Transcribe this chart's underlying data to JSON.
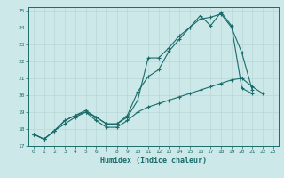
{
  "xlabel": "Humidex (Indice chaleur)",
  "bg_color": "#cce8e8",
  "line_color": "#1a6b6b",
  "grid_color": "#aacccc",
  "xlim": [
    -0.5,
    23.5
  ],
  "ylim": [
    17,
    25.2
  ],
  "yticks": [
    17,
    18,
    19,
    20,
    21,
    22,
    23,
    24,
    25
  ],
  "xticks": [
    0,
    1,
    2,
    3,
    4,
    5,
    6,
    7,
    8,
    9,
    10,
    11,
    12,
    13,
    14,
    15,
    16,
    17,
    18,
    19,
    20,
    21,
    22,
    23
  ],
  "line1_x": [
    0,
    1,
    2,
    3,
    4,
    5,
    6,
    7,
    8,
    9,
    10,
    11,
    12,
    13,
    14,
    15,
    16,
    17,
    18,
    19,
    20,
    21
  ],
  "line1_y": [
    17.7,
    17.4,
    17.9,
    18.5,
    18.8,
    19.0,
    18.7,
    18.3,
    18.3,
    18.8,
    20.2,
    21.1,
    21.5,
    22.6,
    23.3,
    24.0,
    24.5,
    24.6,
    24.8,
    24.0,
    22.5,
    20.3
  ],
  "line2_x": [
    0,
    1,
    2,
    3,
    4,
    5,
    6,
    7,
    8,
    9,
    10,
    11,
    12,
    13,
    14,
    15,
    16,
    17,
    18,
    19,
    20,
    21,
    22,
    23
  ],
  "line2_y": [
    17.7,
    17.4,
    17.9,
    18.5,
    18.8,
    19.1,
    18.7,
    18.3,
    18.3,
    18.7,
    19.7,
    22.2,
    22.2,
    22.8,
    23.5,
    24.0,
    24.7,
    24.1,
    24.9,
    24.1,
    20.4,
    20.1,
    null,
    null
  ],
  "line3_x": [
    0,
    1,
    2,
    3,
    4,
    5,
    6,
    7,
    8,
    9,
    10,
    11,
    12,
    13,
    14,
    15,
    16,
    17,
    18,
    19,
    20,
    21,
    22,
    23
  ],
  "line3_y": [
    17.7,
    17.4,
    17.9,
    18.3,
    18.7,
    19.0,
    18.5,
    18.1,
    18.1,
    18.5,
    19.0,
    19.3,
    19.5,
    19.7,
    19.9,
    20.1,
    20.3,
    20.5,
    20.7,
    20.9,
    21.0,
    20.5,
    20.1,
    null
  ]
}
